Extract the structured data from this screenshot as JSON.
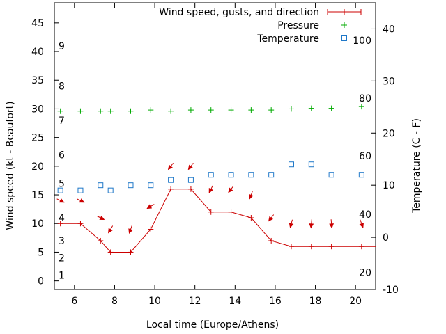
{
  "chart_data": {
    "type": "line",
    "title": "",
    "xlabel": "Local time (Europe/Athens)",
    "ylabel": "Wind speed (kt - Beaufort)",
    "y2label": "Temperature (C - F)",
    "xlim": [
      5.0,
      21.0
    ],
    "ylim": [
      -1.5,
      48.5
    ],
    "y2lim": [
      -10,
      45
    ],
    "x_ticks": [
      6,
      8,
      10,
      12,
      14,
      16,
      18,
      20
    ],
    "y_ticks": [
      0,
      5,
      10,
      15,
      20,
      25,
      30,
      35,
      40,
      45
    ],
    "y2_ticks": [
      -10,
      0,
      10,
      20,
      30,
      40
    ],
    "grid": false,
    "legend_position": "top-right",
    "beaufort_labels": [
      {
        "y": 1,
        "label": "1"
      },
      {
        "y": 4,
        "label": "2"
      },
      {
        "y": 7,
        "label": "3"
      },
      {
        "y": 11,
        "label": "4"
      },
      {
        "y": 17,
        "label": "5"
      },
      {
        "y": 22,
        "label": "6"
      },
      {
        "y": 28,
        "label": "7"
      },
      {
        "y": 34,
        "label": "8"
      },
      {
        "y": 41,
        "label": "9"
      }
    ],
    "fahrenheit_labels": [
      {
        "y2": -6.7,
        "label": "20"
      },
      {
        "y2": 4.4,
        "label": "40"
      },
      {
        "y2": 15.6,
        "label": "60"
      },
      {
        "y2": 26.7,
        "label": "80"
      },
      {
        "y2": 37.8,
        "label": "100"
      }
    ],
    "series": [
      {
        "name": "Wind speed, gusts, and direction",
        "color": "#cc0000",
        "marker": "plus",
        "x": [
          5.3,
          6.3,
          7.3,
          7.8,
          8.8,
          9.8,
          10.8,
          11.8,
          12.8,
          13.8,
          14.8,
          15.8,
          16.8,
          17.8,
          18.8,
          20.3,
          21.0
        ],
        "y": [
          10,
          10,
          7,
          5,
          5,
          9,
          16,
          16,
          12,
          12,
          11,
          7,
          6,
          6,
          6,
          6,
          6
        ]
      },
      {
        "name": "Pressure",
        "color": "#00aa00",
        "marker": "plus",
        "x": [
          5.3,
          6.3,
          7.3,
          7.8,
          8.8,
          9.8,
          10.8,
          11.8,
          12.8,
          13.8,
          14.8,
          15.8,
          16.8,
          17.8,
          18.8,
          20.3
        ],
        "y": [
          29.6,
          29.6,
          29.6,
          29.6,
          29.6,
          29.8,
          29.6,
          29.8,
          29.8,
          29.8,
          29.8,
          29.8,
          30.0,
          30.1,
          30.1,
          30.4
        ]
      },
      {
        "name": "Temperature",
        "color": "#1f78c8",
        "marker": "square",
        "axis": "y2",
        "x": [
          5.3,
          6.3,
          7.3,
          7.8,
          8.8,
          9.8,
          10.8,
          11.8,
          12.8,
          13.8,
          14.8,
          15.8,
          16.8,
          17.8,
          18.8,
          20.3
        ],
        "y": [
          9,
          9,
          10,
          9,
          10,
          10,
          11,
          11,
          12,
          12,
          12,
          12,
          14,
          14,
          12,
          12
        ]
      }
    ],
    "wind_direction_arrows": {
      "color": "#cc0000",
      "points": [
        {
          "x": 5.3,
          "y": 14.0,
          "dx": 10,
          "dy": 5
        },
        {
          "x": 6.3,
          "y": 14.0,
          "dx": 10,
          "dy": 5
        },
        {
          "x": 7.3,
          "y": 11.0,
          "dx": 10,
          "dy": 5
        },
        {
          "x": 7.8,
          "y": 9.0,
          "dx": -6,
          "dy": 10
        },
        {
          "x": 8.8,
          "y": 9.0,
          "dx": -4,
          "dy": 11
        },
        {
          "x": 9.8,
          "y": 13.0,
          "dx": -10,
          "dy": 6
        },
        {
          "x": 10.8,
          "y": 20.0,
          "dx": -7,
          "dy": 9
        },
        {
          "x": 11.8,
          "y": 20.0,
          "dx": -7,
          "dy": 9
        },
        {
          "x": 12.8,
          "y": 16.0,
          "dx": -5,
          "dy": 10
        },
        {
          "x": 13.8,
          "y": 16.0,
          "dx": -7,
          "dy": 9
        },
        {
          "x": 14.8,
          "y": 15.0,
          "dx": -4,
          "dy": 11
        },
        {
          "x": 15.8,
          "y": 11.0,
          "dx": -7,
          "dy": 9
        },
        {
          "x": 16.8,
          "y": 10.0,
          "dx": -3,
          "dy": 11
        },
        {
          "x": 17.8,
          "y": 10.0,
          "dx": -1,
          "dy": 12
        },
        {
          "x": 18.8,
          "y": 10.0,
          "dx": 1,
          "dy": 12
        },
        {
          "x": 20.3,
          "y": 10.0,
          "dx": 4,
          "dy": 11
        }
      ]
    }
  }
}
